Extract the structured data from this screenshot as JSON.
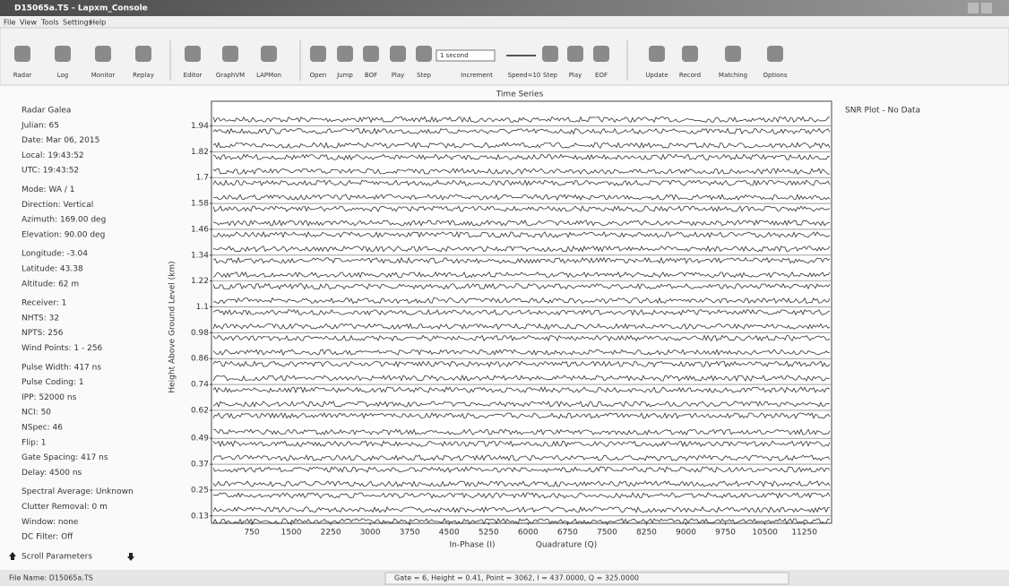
{
  "window": {
    "title": "D15065a.TS - Lapxm_Console"
  },
  "menu": [
    "File",
    "View",
    "Tools",
    "Settings",
    "Help"
  ],
  "toolbar": [
    "Radar",
    "Log",
    "Monitor",
    "Replay",
    "Editor",
    "GraphVM",
    "LAPMon",
    "Open",
    "Jump",
    "BOF",
    "Play",
    "Step",
    "Increment",
    "Speed=10",
    "Step",
    "Play",
    "EOF",
    "Update",
    "Record",
    "Matching",
    "Options"
  ],
  "increment_select": "1 second",
  "info_panel": [
    [
      "Radar Galea",
      "Julian: 65",
      "Date: Mar 06, 2015",
      "Local: 19:43:52",
      "UTC: 19:43:52"
    ],
    [
      "Mode: WA / 1",
      "Direction: Vertical",
      "Azimuth: 169.00 deg",
      "Elevation: 90.00 deg"
    ],
    [
      "Longitude: -3.04",
      "Latitude: 43.38",
      "Altitude: 62 m"
    ],
    [
      "Receiver: 1",
      "NHTS: 32",
      "NPTS: 256",
      "Wind Points: 1 - 256"
    ],
    [
      "Pulse Width: 417 ns",
      "Pulse Coding: 1",
      "IPP: 52000 ns",
      "NCI: 50",
      "NSpec: 46",
      "Flip: 1",
      "Gate Spacing: 417 ns",
      "Delay: 4500 ns"
    ],
    [
      "Spectral Average: Unknown",
      "Clutter Removal: 0 m",
      "Window: none",
      "DC Filter: Off"
    ]
  ],
  "scroll_label": "Scroll Parameters",
  "chart_data": {
    "type": "line",
    "title": "Time Series",
    "y_label": "Height Above Ground Level (km)",
    "x_labels": [
      "In-Phase (I)",
      "Quadrature (Q)"
    ],
    "ylim": [
      0.1,
      2.05
    ],
    "yticks": [
      1.94,
      1.82,
      1.7,
      1.58,
      1.46,
      1.34,
      1.22,
      1.1,
      0.98,
      0.86,
      0.74,
      0.62,
      0.49,
      0.37,
      0.25,
      0.13
    ],
    "xlim": [
      0,
      11750
    ],
    "xticks": [
      750,
      1500,
      2250,
      3000,
      3750,
      4500,
      5250,
      6000,
      6750,
      7500,
      8250,
      9000,
      9750,
      10500,
      11250
    ]
  },
  "snr_plot": "SNR Plot - No Data",
  "status": {
    "file": "File Name: D15065a.TS",
    "cursor": "Gate = 6, Height = 0.41, Point = 3062, I = 437.0000, Q = 325.0000"
  }
}
